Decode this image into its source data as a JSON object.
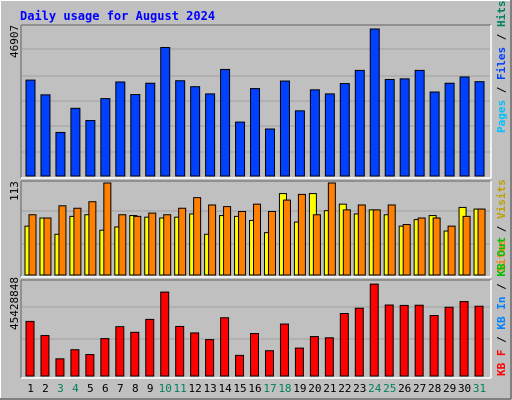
{
  "title": "Daily usage for August 2024",
  "days": [
    "1",
    "2",
    "3",
    "4",
    "5",
    "6",
    "7",
    "8",
    "9",
    "10",
    "11",
    "12",
    "13",
    "14",
    "15",
    "16",
    "17",
    "18",
    "19",
    "20",
    "21",
    "22",
    "23",
    "24",
    "25",
    "26",
    "27",
    "28",
    "29",
    "30",
    "31"
  ],
  "weekend_days": [
    "3",
    "4",
    "10",
    "11",
    "17",
    "18",
    "24",
    "25",
    "31"
  ],
  "top_max_label": "46907",
  "mid_max_label": "113",
  "bot_max_label": "45428848",
  "right_labels": {
    "pages": "Pages",
    "files": "Files",
    "hits": "Hits",
    "visits": "Visits",
    "sites": "Sites",
    "kb_out": "KB Out",
    "kb_in": "KB In",
    "kb_f": "KB F"
  },
  "colors": {
    "background": "#C0C0C0",
    "panel": "#C0C0C0",
    "title": "#0000FF",
    "pages": "#00C0FF",
    "files": "#0040FF",
    "hits": "#00805F",
    "visits": "#FFFF00",
    "sites": "#FF8000",
    "kb": "#FF0000",
    "kb_in": "#0080FF",
    "kb_out": "#00C000",
    "weekend_label": "#00805F",
    "weekday_label": "#000000"
  },
  "chart_data": [
    {
      "type": "bar",
      "categories": [
        "1",
        "2",
        "3",
        "4",
        "5",
        "6",
        "7",
        "8",
        "9",
        "10",
        "11",
        "12",
        "13",
        "14",
        "15",
        "16",
        "17",
        "18",
        "19",
        "20",
        "21",
        "22",
        "23",
        "24",
        "25",
        "26",
        "27",
        "28",
        "29",
        "30",
        "31"
      ],
      "series": [
        {
          "name": "Hits",
          "values": [
            30600,
            25900,
            13900,
            21600,
            17700,
            24700,
            30000,
            26000,
            29600,
            41000,
            30400,
            28500,
            26200,
            34000,
            17200,
            27900,
            15000,
            30300,
            20800,
            27500,
            26200,
            29500,
            33700,
            46907,
            30800,
            31000,
            33700,
            26800,
            29600,
            31600,
            30100
          ]
        }
      ],
      "ylim": [
        0,
        46907
      ]
    },
    {
      "type": "bar",
      "categories": [
        "1",
        "2",
        "3",
        "4",
        "5",
        "6",
        "7",
        "8",
        "9",
        "10",
        "11",
        "12",
        "13",
        "14",
        "15",
        "16",
        "17",
        "18",
        "19",
        "20",
        "21",
        "22",
        "23",
        "24",
        "25",
        "26",
        "27",
        "28",
        "29",
        "30",
        "31"
      ],
      "series": [
        {
          "name": "Visits",
          "values": [
            60,
            70,
            50,
            72,
            74,
            55,
            59,
            73,
            71,
            70,
            71,
            75,
            50,
            73,
            72,
            67,
            52,
            100,
            65,
            100,
            79,
            87,
            75,
            80,
            74,
            60,
            68,
            73,
            54,
            83,
            81
          ]
        },
        {
          "name": "Sites",
          "values": [
            74,
            70,
            85,
            82,
            90,
            113,
            74,
            72,
            76,
            74,
            82,
            95,
            86,
            84,
            78,
            87,
            78,
            92,
            99,
            74,
            113,
            80,
            86,
            80,
            86,
            62,
            70,
            70,
            60,
            72,
            81
          ]
        }
      ],
      "ylim": [
        0,
        113
      ]
    },
    {
      "type": "bar",
      "categories": [
        "1",
        "2",
        "3",
        "4",
        "5",
        "6",
        "7",
        "8",
        "9",
        "10",
        "11",
        "12",
        "13",
        "14",
        "15",
        "16",
        "17",
        "18",
        "19",
        "20",
        "21",
        "22",
        "23",
        "24",
        "25",
        "26",
        "27",
        "28",
        "29",
        "30",
        "31"
      ],
      "series": [
        {
          "name": "KB F",
          "values": [
            27000,
            20000,
            8500,
            13000,
            10600,
            18500,
            24400,
            21600,
            28000,
            41500,
            24500,
            21300,
            18000,
            28800,
            10200,
            21000,
            12500,
            25700,
            13800,
            19500,
            18900,
            30900,
            33500,
            45428848,
            35100,
            34900,
            35000,
            29900,
            34000,
            36800,
            34500
          ]
        }
      ],
      "ylim": [
        0,
        45428848
      ]
    }
  ]
}
